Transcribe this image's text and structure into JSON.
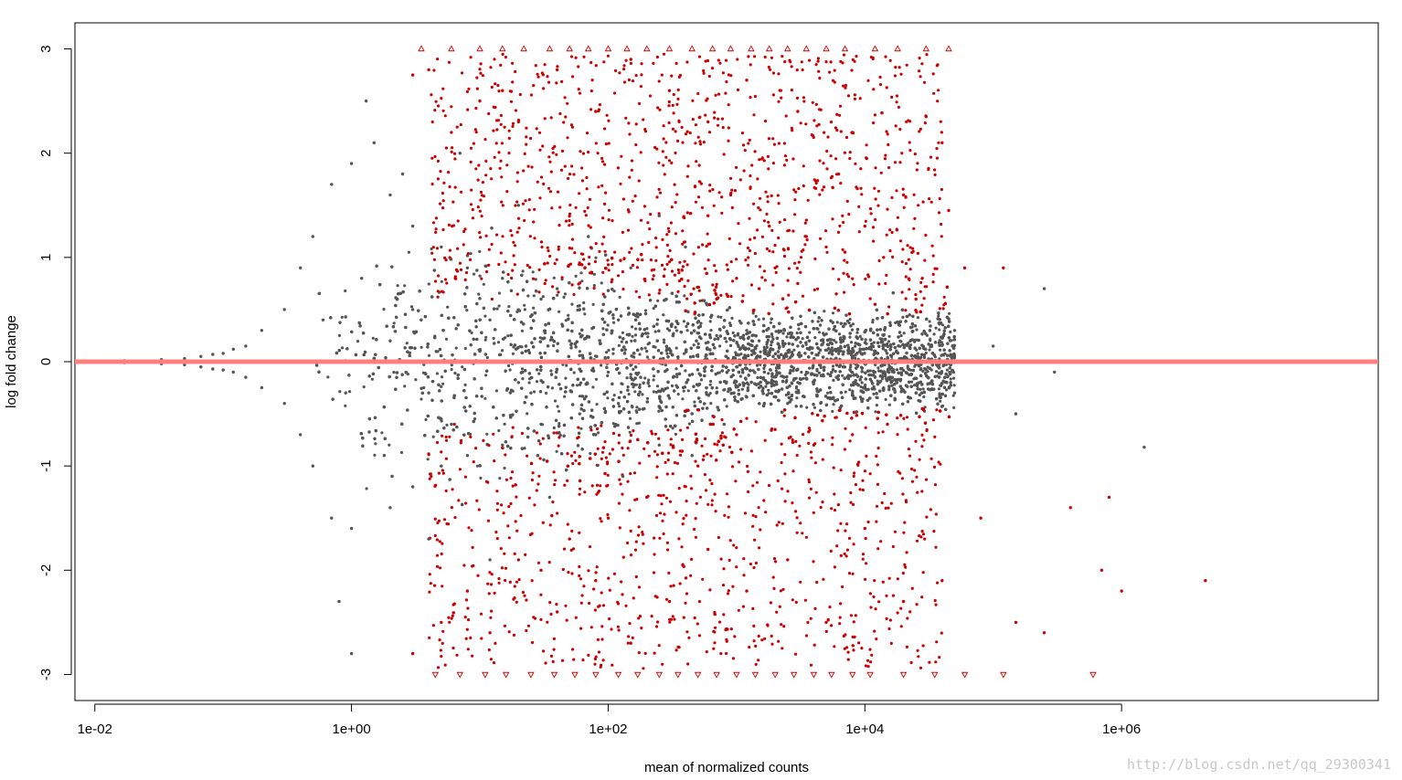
{
  "chart_data": {
    "type": "scatter",
    "title": "",
    "xlabel": "mean of normalized counts",
    "ylabel": "log fold change",
    "x_scale": "log10",
    "xlim": [
      0.007,
      100000000
    ],
    "ylim": [
      -3.25,
      3.25
    ],
    "x_ticks": [
      0.01,
      1,
      100,
      10000,
      1000000
    ],
    "x_tick_labels": [
      "1e-02",
      "1e+00",
      "1e+02",
      "1e+04",
      "1e+06"
    ],
    "y_ticks": [
      -3,
      -2,
      -1,
      0,
      1,
      2,
      3
    ],
    "y_tick_labels": [
      "-3",
      "-2",
      "-1",
      "0",
      "1",
      "2",
      "3"
    ],
    "reference_line": {
      "y": 0,
      "color": "#ff7f7f"
    },
    "grid": false,
    "legend": "none",
    "colors": {
      "not_significant": "#555555",
      "significant": "#cc0000",
      "out_of_range": "#cc0000"
    },
    "series": [
      {
        "name": "",
        "marker": "dot",
        "color": "#555555",
        "points": [
          [
            0.017,
            0.01
          ],
          [
            0.017,
            -0.01
          ],
          [
            0.033,
            0.02
          ],
          [
            0.033,
            -0.02
          ],
          [
            0.05,
            0.03
          ],
          [
            0.05,
            -0.03
          ],
          [
            0.067,
            0.05
          ],
          [
            0.067,
            -0.05
          ],
          [
            0.083,
            0.07
          ],
          [
            0.083,
            -0.07
          ],
          [
            0.1,
            0.08
          ],
          [
            0.1,
            -0.08
          ],
          [
            0.12,
            0.12
          ],
          [
            0.12,
            -0.1
          ],
          [
            0.15,
            0.15
          ],
          [
            0.15,
            -0.15
          ],
          [
            0.2,
            0.3
          ],
          [
            0.2,
            -0.25
          ],
          [
            0.3,
            0.5
          ],
          [
            0.3,
            -0.4
          ],
          [
            0.4,
            0.9
          ],
          [
            0.4,
            -0.7
          ],
          [
            0.5,
            1.2
          ],
          [
            0.5,
            -1.0
          ],
          [
            0.7,
            1.7
          ],
          [
            0.7,
            -1.5
          ],
          [
            1,
            1.9
          ],
          [
            1,
            -1.6
          ],
          [
            1.3,
            2.5
          ],
          [
            1.5,
            2.1
          ],
          [
            0.8,
            -2.3
          ],
          [
            1,
            -2.8
          ],
          [
            2,
            1.6
          ],
          [
            2,
            -1.4
          ],
          [
            3,
            1.3
          ],
          [
            3,
            -1.2
          ],
          [
            5,
            1.1
          ],
          [
            5,
            -1.0
          ],
          [
            8,
            0.9
          ],
          [
            8,
            -0.9
          ],
          [
            15,
            0.8
          ],
          [
            15,
            -0.8
          ],
          [
            30,
            0.6
          ],
          [
            30,
            -0.6
          ],
          [
            60,
            0.5
          ],
          [
            60,
            -0.5
          ],
          [
            120,
            0.4
          ],
          [
            120,
            -0.4
          ],
          [
            300,
            0.3
          ],
          [
            300,
            -0.35
          ],
          [
            700,
            0.25
          ],
          [
            700,
            -0.3
          ],
          [
            1500,
            0.2
          ],
          [
            1500,
            -0.25
          ],
          [
            3000,
            0.15
          ],
          [
            3000,
            -0.2
          ],
          [
            6000,
            0.1
          ],
          [
            6000,
            -0.15
          ],
          [
            12000,
            0.1
          ],
          [
            12000,
            -0.1
          ],
          [
            25000,
            0.05
          ],
          [
            50000,
            0.3
          ],
          [
            50000,
            -0.3
          ],
          [
            100000,
            0.15
          ],
          [
            150000,
            -0.5
          ],
          [
            250000,
            0.7
          ],
          [
            300000,
            -0.1
          ],
          [
            1500000,
            -0.82
          ],
          [
            2,
            0.2
          ],
          [
            4,
            -0.3
          ],
          [
            10,
            0.1
          ],
          [
            20,
            -0.2
          ],
          [
            50,
            0.2
          ],
          [
            100,
            -0.1
          ],
          [
            200,
            0.1
          ],
          [
            500,
            0.05
          ],
          [
            1000,
            -0.05
          ],
          [
            2000,
            0.02
          ],
          [
            5000,
            0.0
          ],
          [
            10000,
            -0.02
          ],
          [
            20000,
            0.03
          ],
          [
            3,
            0.5
          ],
          [
            6,
            -0.6
          ],
          [
            12,
            0.4
          ],
          [
            25,
            -0.3
          ],
          [
            40,
            0.7
          ],
          [
            80,
            -0.7
          ],
          [
            150,
            0.9
          ],
          [
            250,
            -0.8
          ],
          [
            400,
            1.1
          ],
          [
            800,
            -0.6
          ],
          [
            1200,
            0.3
          ],
          [
            2500,
            -0.4
          ],
          [
            4500,
            0.35
          ],
          [
            8000,
            -0.3
          ],
          [
            0.6,
            0.4
          ],
          [
            0.9,
            -0.3
          ],
          [
            1.2,
            0.8
          ],
          [
            1.8,
            -0.9
          ],
          [
            2.5,
            1.8
          ],
          [
            4,
            -1.7
          ],
          [
            7,
            2.0
          ],
          [
            12,
            -1.9
          ],
          [
            20,
            1.5
          ],
          [
            35,
            -1.3
          ],
          [
            70,
            1.2
          ],
          [
            130,
            -1.1
          ],
          [
            250,
            1.4
          ],
          [
            450,
            -0.9
          ]
        ]
      },
      {
        "name": "",
        "marker": "dot",
        "color": "#cc0000",
        "points": [
          [
            3,
            2.75
          ],
          [
            4,
            2.8
          ],
          [
            6,
            2.2
          ],
          [
            10,
            2.5
          ],
          [
            15,
            2.6
          ],
          [
            20,
            2.3
          ],
          [
            40,
            2.8
          ],
          [
            80,
            2.4
          ],
          [
            150,
            2.9
          ],
          [
            300,
            2.6
          ],
          [
            600,
            2.3
          ],
          [
            1200,
            2.7
          ],
          [
            3000,
            2.4
          ],
          [
            8000,
            2.2
          ],
          [
            30000,
            2.35
          ],
          [
            40000,
            2.1
          ],
          [
            45000,
            1.45
          ],
          [
            20000,
            1.6
          ],
          [
            10000,
            1.3
          ],
          [
            5000,
            1.1
          ],
          [
            2000,
            0.9
          ],
          [
            1000,
            0.8
          ],
          [
            700,
            0.6
          ],
          [
            1500,
            0.7
          ],
          [
            3000,
            0.75
          ],
          [
            6000,
            0.65
          ],
          [
            12000,
            0.55
          ],
          [
            25000,
            0.6
          ],
          [
            60000,
            0.9
          ],
          [
            120000,
            0.9
          ],
          [
            3,
            -2.8
          ],
          [
            5,
            -2.5
          ],
          [
            8,
            -2.2
          ],
          [
            12,
            -2.6
          ],
          [
            20,
            -1.9
          ],
          [
            40,
            -2.4
          ],
          [
            80,
            -2.1
          ],
          [
            150,
            -2.7
          ],
          [
            300,
            -2.3
          ],
          [
            600,
            -1.8
          ],
          [
            1200,
            -2.2
          ],
          [
            2500,
            -1.9
          ],
          [
            5000,
            -2.5
          ],
          [
            10000,
            -1.6
          ],
          [
            20000,
            -2.3
          ],
          [
            40000,
            -2.1
          ],
          [
            80000,
            -1.5
          ],
          [
            150000,
            -2.5
          ],
          [
            250000,
            -2.6
          ],
          [
            400000,
            -1.4
          ],
          [
            700000,
            -2.0
          ],
          [
            800000,
            -1.3
          ],
          [
            1000000,
            -2.2
          ],
          [
            4500000,
            -2.1
          ],
          [
            1000,
            -0.7
          ],
          [
            2000,
            -0.65
          ],
          [
            4000,
            -0.8
          ],
          [
            8000,
            -0.7
          ],
          [
            15000,
            -0.6
          ],
          [
            500,
            -1.0
          ],
          [
            200,
            -1.3
          ],
          [
            100,
            -1.5
          ],
          [
            50,
            -1.7
          ],
          [
            30,
            -2.0
          ],
          [
            600,
            1.4
          ],
          [
            900,
            1.6
          ],
          [
            1800,
            1.3
          ],
          [
            3500,
            1.2
          ],
          [
            7000,
            1.05
          ],
          [
            14000,
            1.0
          ],
          [
            28000,
            0.8
          ]
        ]
      },
      {
        "name": "",
        "marker": "triangle-up",
        "color": "#cc0000",
        "points": [
          [
            3.5,
            3
          ],
          [
            6,
            3
          ],
          [
            10,
            3
          ],
          [
            15,
            3
          ],
          [
            22,
            3
          ],
          [
            35,
            3
          ],
          [
            50,
            3
          ],
          [
            70,
            3
          ],
          [
            100,
            3
          ],
          [
            140,
            3
          ],
          [
            200,
            3
          ],
          [
            300,
            3
          ],
          [
            450,
            3
          ],
          [
            650,
            3
          ],
          [
            900,
            3
          ],
          [
            1300,
            3
          ],
          [
            1800,
            3
          ],
          [
            2500,
            3
          ],
          [
            3500,
            3
          ],
          [
            5000,
            3
          ],
          [
            7000,
            3
          ],
          [
            12000,
            3
          ],
          [
            18000,
            3
          ],
          [
            30000,
            3
          ],
          [
            45000,
            3
          ]
        ]
      },
      {
        "name": "",
        "marker": "triangle-down",
        "color": "#cc0000",
        "points": [
          [
            4.5,
            -3
          ],
          [
            7,
            -3
          ],
          [
            11,
            -3
          ],
          [
            16,
            -3
          ],
          [
            25,
            -3
          ],
          [
            38,
            -3
          ],
          [
            55,
            -3
          ],
          [
            80,
            -3
          ],
          [
            120,
            -3
          ],
          [
            170,
            -3
          ],
          [
            250,
            -3
          ],
          [
            350,
            -3
          ],
          [
            500,
            -3
          ],
          [
            700,
            -3
          ],
          [
            1000,
            -3
          ],
          [
            1400,
            -3
          ],
          [
            2000,
            -3
          ],
          [
            2800,
            -3
          ],
          [
            4000,
            -3
          ],
          [
            5500,
            -3
          ],
          [
            8000,
            -3
          ],
          [
            11000,
            -3
          ],
          [
            20000,
            -3
          ],
          [
            35000,
            -3
          ],
          [
            60000,
            -3
          ],
          [
            120000,
            -3
          ],
          [
            600000,
            -3
          ]
        ]
      }
    ]
  },
  "watermark": "http://blog.csdn.net/qq_29300341"
}
